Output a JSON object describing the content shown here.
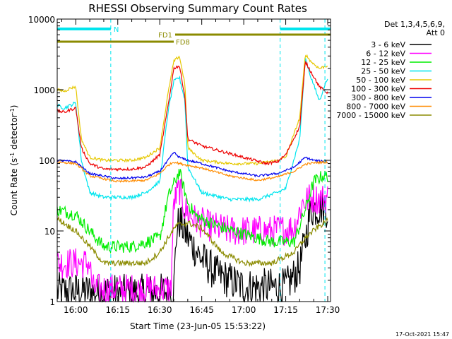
{
  "chart_data": {
    "type": "line",
    "title": "RHESSI Observing Summary Count Rates",
    "xlabel": "Start Time (23-Jun-05 15:53:22)",
    "ylabel": "Count Rate (s",
    "ylabel_sup1": "-1",
    "ylabel_mid": " detector",
    "ylabel_sup2": "-1",
    "ylabel_end": ")",
    "y_scale": "log",
    "ylim": [
      1,
      10000
    ],
    "xlim": [
      "15:53:22",
      "17:31:00"
    ],
    "x_ticks": [
      "16:00",
      "16:15",
      "16:30",
      "16:45",
      "17:00",
      "17:15",
      "17:30"
    ],
    "y_ticks": [
      "1",
      "10",
      "100",
      "1000",
      "10000"
    ],
    "timestamp": "17-Oct-2021 15:47",
    "legend": {
      "header1": "Det 1,3,4,5,6,9,",
      "header2": "Att 0",
      "placement": "right"
    },
    "annotations": {
      "night_label": "N",
      "fd1_label": "FD1",
      "fd8_label": "FD8",
      "night_color": "#00e5ee",
      "fd_color": "#8b8b00",
      "night_intervals": [
        [
          "15:53:22",
          "16:12:30"
        ],
        [
          "17:13:00",
          "17:31:00"
        ]
      ],
      "fd1_interval": [
        "16:35:30",
        "17:31:00"
      ],
      "fd8_interval": [
        "15:53:22",
        "16:35:00"
      ],
      "boundaries": [
        "16:12:30",
        "17:13:00",
        "17:29:00"
      ]
    },
    "series": [
      {
        "name": "3 - 6 keV",
        "color": "#000000",
        "noise": 0.55,
        "points": [
          [
            "15:53:22",
            1.4
          ],
          [
            "16:00",
            1.4
          ],
          [
            "16:20",
            1.3
          ],
          [
            "16:35",
            1.4
          ],
          [
            "16:36",
            10
          ],
          [
            "16:37",
            14
          ],
          [
            "16:40",
            8
          ],
          [
            "16:45",
            4
          ],
          [
            "16:50",
            2.5
          ],
          [
            "17:00",
            1.6
          ],
          [
            "17:15",
            1.6
          ],
          [
            "17:20",
            3
          ],
          [
            "17:24",
            20
          ],
          [
            "17:28",
            22
          ],
          [
            "17:30",
            20
          ]
        ]
      },
      {
        "name": "6 - 12 keV",
        "color": "#ff00ff",
        "noise": 0.45,
        "points": [
          [
            "15:53:22",
            3.5
          ],
          [
            "16:05",
            3.5
          ],
          [
            "16:06",
            1.5
          ],
          [
            "16:34",
            1.5
          ],
          [
            "16:35",
            25
          ],
          [
            "16:37",
            40
          ],
          [
            "16:39",
            20
          ],
          [
            "16:42",
            15
          ],
          [
            "16:47",
            12
          ],
          [
            "16:55",
            10
          ],
          [
            "17:10",
            10
          ],
          [
            "17:18",
            11
          ],
          [
            "17:21",
            25
          ],
          [
            "17:24",
            30
          ],
          [
            "17:27",
            28
          ],
          [
            "17:30",
            30
          ]
        ]
      },
      {
        "name": "12 - 25 keV",
        "color": "#00ee00",
        "noise": 0.18,
        "points": [
          [
            "15:53:22",
            20
          ],
          [
            "16:00",
            17
          ],
          [
            "16:05",
            10
          ],
          [
            "16:10",
            6
          ],
          [
            "16:20",
            6
          ],
          [
            "16:30",
            8
          ],
          [
            "16:33",
            30
          ],
          [
            "16:37",
            70
          ],
          [
            "16:40",
            25
          ],
          [
            "16:43",
            16
          ],
          [
            "16:50",
            12
          ],
          [
            "17:00",
            9
          ],
          [
            "17:10",
            7
          ],
          [
            "17:18",
            7
          ],
          [
            "17:22",
            20
          ],
          [
            "17:25",
            50
          ],
          [
            "17:28",
            60
          ],
          [
            "17:30",
            60
          ]
        ]
      },
      {
        "name": "25 - 50 keV",
        "color": "#00e5ee",
        "noise": 0.05,
        "points": [
          [
            "15:53:22",
            600
          ],
          [
            "15:56",
            550
          ],
          [
            "15:58",
            600
          ],
          [
            "16:00",
            650
          ],
          [
            "16:02",
            100
          ],
          [
            "16:05",
            35
          ],
          [
            "16:10",
            30
          ],
          [
            "16:20",
            30
          ],
          [
            "16:25",
            35
          ],
          [
            "16:30",
            50
          ],
          [
            "16:33",
            500
          ],
          [
            "16:35",
            1300
          ],
          [
            "16:37",
            1500
          ],
          [
            "16:39",
            700
          ],
          [
            "16:40",
            80
          ],
          [
            "16:45",
            35
          ],
          [
            "16:55",
            28
          ],
          [
            "17:05",
            28
          ],
          [
            "17:12",
            35
          ],
          [
            "17:15",
            40
          ],
          [
            "17:20",
            200
          ],
          [
            "17:22",
            2800
          ],
          [
            "17:24",
            1500
          ],
          [
            "17:27",
            700
          ],
          [
            "17:30",
            1500
          ]
        ]
      },
      {
        "name": "50 - 100 keV",
        "color": "#e6c800",
        "noise": 0.04,
        "points": [
          [
            "15:53:22",
            1000
          ],
          [
            "15:56",
            950
          ],
          [
            "15:58",
            1050
          ],
          [
            "16:00",
            1100
          ],
          [
            "16:02",
            200
          ],
          [
            "16:05",
            110
          ],
          [
            "16:10",
            100
          ],
          [
            "16:20",
            100
          ],
          [
            "16:25",
            110
          ],
          [
            "16:30",
            150
          ],
          [
            "16:33",
            900
          ],
          [
            "16:35",
            2500
          ],
          [
            "16:37",
            3000
          ],
          [
            "16:39",
            1200
          ],
          [
            "16:40",
            150
          ],
          [
            "16:45",
            100
          ],
          [
            "16:55",
            90
          ],
          [
            "17:05",
            90
          ],
          [
            "17:12",
            100
          ],
          [
            "17:15",
            110
          ],
          [
            "17:20",
            400
          ],
          [
            "17:22",
            3200
          ],
          [
            "17:24",
            2500
          ],
          [
            "17:27",
            2000
          ],
          [
            "17:30",
            2200
          ]
        ]
      },
      {
        "name": "100 - 300 keV",
        "color": "#ee0000",
        "noise": 0.04,
        "points": [
          [
            "15:53:22",
            500
          ],
          [
            "15:56",
            480
          ],
          [
            "15:58",
            520
          ],
          [
            "16:00",
            550
          ],
          [
            "16:02",
            150
          ],
          [
            "16:05",
            90
          ],
          [
            "16:10",
            75
          ],
          [
            "16:20",
            75
          ],
          [
            "16:25",
            80
          ],
          [
            "16:30",
            120
          ],
          [
            "16:33",
            600
          ],
          [
            "16:35",
            2000
          ],
          [
            "16:37",
            2200
          ],
          [
            "16:39",
            800
          ],
          [
            "16:40",
            200
          ],
          [
            "16:45",
            160
          ],
          [
            "17:00",
            110
          ],
          [
            "17:08",
            90
          ],
          [
            "17:12",
            95
          ],
          [
            "17:15",
            120
          ],
          [
            "17:20",
            300
          ],
          [
            "17:22",
            2500
          ],
          [
            "17:24",
            1800
          ],
          [
            "17:27",
            1100
          ],
          [
            "17:30",
            900
          ]
        ]
      },
      {
        "name": "300 - 800 keV",
        "color": "#0000ee",
        "noise": 0.03,
        "points": [
          [
            "15:53:22",
            100
          ],
          [
            "16:00",
            95
          ],
          [
            "16:05",
            65
          ],
          [
            "16:15",
            55
          ],
          [
            "16:25",
            58
          ],
          [
            "16:30",
            70
          ],
          [
            "16:33",
            100
          ],
          [
            "16:35",
            130
          ],
          [
            "16:37",
            110
          ],
          [
            "16:40",
            100
          ],
          [
            "16:45",
            90
          ],
          [
            "16:55",
            70
          ],
          [
            "17:05",
            60
          ],
          [
            "17:12",
            65
          ],
          [
            "17:18",
            80
          ],
          [
            "17:22",
            110
          ],
          [
            "17:25",
            100
          ],
          [
            "17:30",
            95
          ]
        ]
      },
      {
        "name": "800 - 7000 keV",
        "color": "#ff8c00",
        "noise": 0.03,
        "points": [
          [
            "15:53:22",
            95
          ],
          [
            "16:00",
            90
          ],
          [
            "16:05",
            60
          ],
          [
            "16:15",
            50
          ],
          [
            "16:25",
            52
          ],
          [
            "16:30",
            65
          ],
          [
            "16:33",
            85
          ],
          [
            "16:35",
            95
          ],
          [
            "16:37",
            90
          ],
          [
            "16:40",
            85
          ],
          [
            "16:45",
            78
          ],
          [
            "16:55",
            60
          ],
          [
            "17:05",
            52
          ],
          [
            "17:12",
            58
          ],
          [
            "17:18",
            70
          ],
          [
            "17:22",
            88
          ],
          [
            "17:25",
            92
          ],
          [
            "17:30",
            95
          ]
        ]
      },
      {
        "name": "7000 - 15000 keV",
        "color": "#8b8b00",
        "noise": 0.08,
        "points": [
          [
            "15:53:22",
            15
          ],
          [
            "16:00",
            10
          ],
          [
            "16:05",
            6
          ],
          [
            "16:10",
            3.5
          ],
          [
            "16:25",
            3.5
          ],
          [
            "16:30",
            5
          ],
          [
            "16:33",
            8
          ],
          [
            "16:36",
            12
          ],
          [
            "16:40",
            13
          ],
          [
            "16:45",
            11
          ],
          [
            "16:52",
            5
          ],
          [
            "17:00",
            3.5
          ],
          [
            "17:10",
            3.5
          ],
          [
            "17:18",
            5
          ],
          [
            "17:22",
            8
          ],
          [
            "17:26",
            11
          ],
          [
            "17:30",
            14
          ]
        ]
      }
    ]
  }
}
